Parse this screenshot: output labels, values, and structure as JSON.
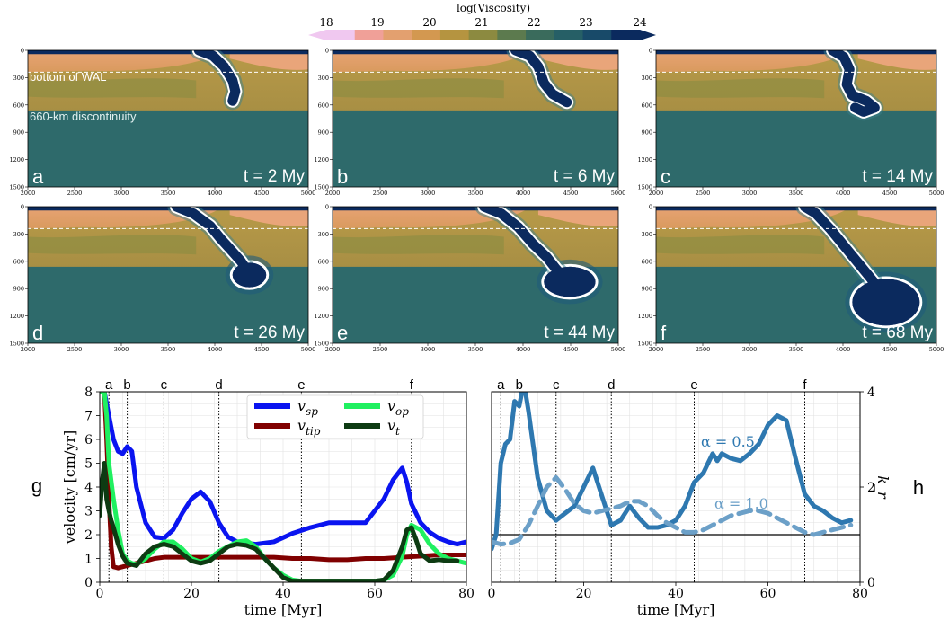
{
  "colorbar": {
    "title": "log(Viscosity)",
    "ticks": [
      "18",
      "19",
      "20",
      "21",
      "22",
      "23",
      "24"
    ],
    "colors": [
      "#f0c8f0",
      "#f0a098",
      "#e3a06f",
      "#d39850",
      "#b59440",
      "#8c8a40",
      "#5c7a4e",
      "#3a6b5c",
      "#265f66",
      "#184a69",
      "#0b2a5e"
    ]
  },
  "panels": [
    {
      "letter": "a",
      "time": "t = 2 My"
    },
    {
      "letter": "b",
      "time": "t = 6 My"
    },
    {
      "letter": "c",
      "time": "t = 14 My"
    },
    {
      "letter": "d",
      "time": "t = 26 My"
    },
    {
      "letter": "e",
      "time": "t = 44 My"
    },
    {
      "letter": "f",
      "time": "t = 68 My"
    }
  ],
  "panel_x_ticks": [
    "2000",
    "2500",
    "3000",
    "3500",
    "4000",
    "4500",
    "5000"
  ],
  "panel_y_ticks": [
    "0",
    "300",
    "600",
    "900",
    "1200",
    "1500"
  ],
  "annotations": {
    "wal": "bottom of WAL",
    "disc": "660-km discontinuity"
  },
  "panel_labels": {
    "g": "g",
    "h": "h"
  },
  "chart_data": [
    {
      "type": "line",
      "xlabel": "time [Myr]",
      "ylabel": "velocity [cm/yr]",
      "xlim": [
        0,
        80
      ],
      "ylim": [
        0,
        8
      ],
      "x_ticks": [
        "0",
        "20",
        "40",
        "60",
        "80"
      ],
      "y_ticks": [
        "0",
        "1",
        "2",
        "3",
        "4",
        "5",
        "6",
        "7",
        "8"
      ],
      "grid": true,
      "legend": "top-center",
      "event_lines": [
        {
          "label": "a",
          "x": 2
        },
        {
          "label": "b",
          "x": 6
        },
        {
          "label": "c",
          "x": 14
        },
        {
          "label": "d",
          "x": 26
        },
        {
          "label": "e",
          "x": 44
        },
        {
          "label": "f",
          "x": 68
        }
      ],
      "series": [
        {
          "name": "sp",
          "color": "#0a14f0",
          "x": [
            0,
            1,
            2,
            3,
            4,
            5,
            6,
            7,
            8,
            10,
            12,
            14,
            16,
            18,
            20,
            22,
            24,
            26,
            28,
            30,
            34,
            38,
            42,
            46,
            50,
            54,
            58,
            62,
            64,
            66,
            67,
            68,
            70,
            72,
            74,
            76,
            78,
            80
          ],
          "y": [
            8,
            8,
            7,
            6,
            5.5,
            5.4,
            5.7,
            5.5,
            4,
            2.5,
            1.9,
            1.85,
            2.2,
            2.9,
            3.5,
            3.8,
            3.4,
            2.5,
            1.9,
            1.7,
            1.6,
            1.7,
            2.05,
            2.3,
            2.5,
            2.5,
            2.5,
            3.5,
            4.3,
            4.8,
            4.2,
            3.3,
            2.5,
            2.1,
            1.85,
            1.7,
            1.6,
            1.7
          ]
        },
        {
          "name": "tip",
          "color": "#800000",
          "x": [
            0,
            1,
            1.5,
            2,
            2.5,
            3,
            4,
            6,
            8,
            10,
            12,
            14,
            18,
            22,
            26,
            30,
            34,
            38,
            42,
            46,
            50,
            54,
            58,
            62,
            66,
            70,
            74,
            78,
            80
          ],
          "y": [
            8,
            8,
            6,
            3.5,
            1.5,
            0.65,
            0.6,
            0.7,
            0.8,
            0.9,
            1.0,
            1.05,
            1.05,
            1.05,
            1.05,
            1.05,
            1.05,
            1.05,
            1.0,
            1.0,
            0.95,
            0.95,
            1.0,
            1.0,
            1.05,
            1.1,
            1.15,
            1.15,
            1.15
          ]
        },
        {
          "name": "op",
          "color": "#20f060",
          "x": [
            0,
            0.5,
            1,
            1.5,
            2,
            3,
            4,
            5,
            6,
            7,
            8,
            10,
            12,
            14,
            16,
            18,
            20,
            22,
            24,
            26,
            28,
            30,
            32,
            34,
            36,
            38,
            40,
            42,
            44,
            46,
            48,
            50,
            52,
            54,
            56,
            58,
            60,
            62,
            64,
            66,
            67,
            68,
            70,
            72,
            74,
            76,
            78,
            80
          ],
          "y": [
            8,
            8,
            8,
            7,
            5,
            3.5,
            2.2,
            1.2,
            0.9,
            0.8,
            0.75,
            1.0,
            1.4,
            1.7,
            1.7,
            1.4,
            1.0,
            0.85,
            1.0,
            1.3,
            1.5,
            1.7,
            1.75,
            1.5,
            1.0,
            0.6,
            0.3,
            0.1,
            0.05,
            0.05,
            0.05,
            0.05,
            0.05,
            0.05,
            0.05,
            0.05,
            0.05,
            0.1,
            0.3,
            1.1,
            2.0,
            2.4,
            2.2,
            1.6,
            1.2,
            1.0,
            0.9,
            0.8
          ]
        },
        {
          "name": "t",
          "color": "#0d3b12",
          "x": [
            0,
            0.5,
            1,
            1.5,
            2,
            2.5,
            3,
            4,
            5,
            6,
            7,
            8,
            10,
            12,
            14,
            16,
            18,
            20,
            22,
            24,
            26,
            28,
            30,
            32,
            34,
            36,
            38,
            40,
            42,
            44,
            46,
            48,
            50,
            52,
            54,
            56,
            58,
            60,
            62,
            64,
            66,
            67,
            68,
            69,
            70,
            72,
            74,
            76,
            78
          ],
          "y": [
            2.8,
            4.2,
            5,
            3.5,
            3,
            2.6,
            2.3,
            1.6,
            1.1,
            0.8,
            0.75,
            0.7,
            1.2,
            1.5,
            1.6,
            1.5,
            1.2,
            0.9,
            0.8,
            0.9,
            1.2,
            1.5,
            1.6,
            1.55,
            1.4,
            1.0,
            0.6,
            0.2,
            0.05,
            0.05,
            0.05,
            0.05,
            0.05,
            0.05,
            0.05,
            0.05,
            0.05,
            0.05,
            0.1,
            0.5,
            1.5,
            2.2,
            2.3,
            1.8,
            1.2,
            0.9,
            0.95,
            0.9,
            0.9
          ]
        }
      ]
    },
    {
      "type": "line",
      "xlabel": "time [Myr]",
      "ylabel": "k_r",
      "xlim": [
        0,
        80
      ],
      "ylim": [
        0,
        4
      ],
      "x_ticks": [
        "0",
        "20",
        "40",
        "60",
        "80"
      ],
      "y_ticks": [
        "0",
        "2",
        "4"
      ],
      "grid": true,
      "reference_line": 1,
      "event_lines": [
        {
          "label": "a",
          "x": 2
        },
        {
          "label": "b",
          "x": 6
        },
        {
          "label": "c",
          "x": 14
        },
        {
          "label": "d",
          "x": 26
        },
        {
          "label": "e",
          "x": 44
        },
        {
          "label": "f",
          "x": 68
        }
      ],
      "series": [
        {
          "name": "α = 0.5",
          "color": "#2e78b0",
          "dashed": false,
          "x": [
            0,
            1,
            2,
            3,
            4,
            5,
            6,
            7,
            8,
            9,
            10,
            12,
            14,
            16,
            18,
            20,
            22,
            24,
            26,
            28,
            30,
            32,
            34,
            36,
            38,
            40,
            42,
            44,
            46,
            47,
            48,
            49,
            50,
            52,
            54,
            56,
            58,
            60,
            62,
            64,
            66,
            68,
            70,
            72,
            74,
            76,
            78
          ],
          "y": [
            0.7,
            1.0,
            2.5,
            2.9,
            3.0,
            3.8,
            3.7,
            4.2,
            3.6,
            2.9,
            2.2,
            1.5,
            1.3,
            1.45,
            1.6,
            2.0,
            2.4,
            1.8,
            1.2,
            1.3,
            1.6,
            1.35,
            1.15,
            1.15,
            1.2,
            1.3,
            1.6,
            2.1,
            2.3,
            2.5,
            2.7,
            2.55,
            2.7,
            2.6,
            2.55,
            2.7,
            2.9,
            3.3,
            3.5,
            3.4,
            2.6,
            1.85,
            1.6,
            1.5,
            1.35,
            1.25,
            1.3
          ]
        },
        {
          "name": "α = 1.0",
          "color": "#6ca0c8",
          "dashed": true,
          "x": [
            0,
            2,
            4,
            6,
            8,
            10,
            12,
            14,
            16,
            18,
            20,
            22,
            24,
            26,
            28,
            30,
            32,
            34,
            36,
            38,
            40,
            42,
            44,
            46,
            48,
            50,
            52,
            54,
            56,
            58,
            60,
            62,
            64,
            66,
            68,
            70,
            72,
            74,
            76,
            78
          ],
          "y": [
            0.85,
            0.8,
            0.82,
            0.9,
            1.2,
            1.6,
            2.0,
            2.2,
            1.95,
            1.65,
            1.5,
            1.45,
            1.5,
            1.55,
            1.6,
            1.7,
            1.7,
            1.6,
            1.4,
            1.25,
            1.15,
            1.05,
            1.05,
            1.1,
            1.2,
            1.3,
            1.4,
            1.45,
            1.5,
            1.5,
            1.45,
            1.35,
            1.25,
            1.15,
            1.05,
            1.0,
            1.05,
            1.1,
            1.15,
            1.2
          ]
        }
      ]
    }
  ]
}
